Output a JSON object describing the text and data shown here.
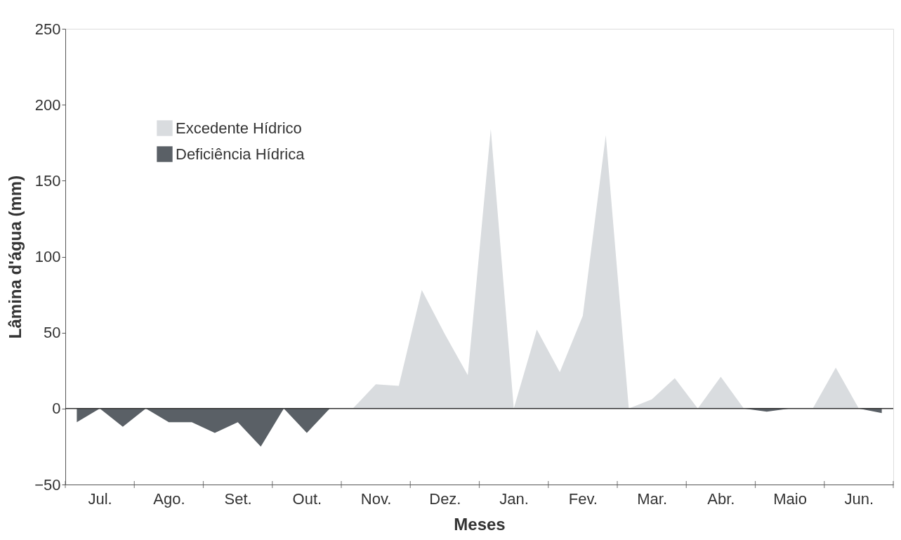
{
  "chart_data": {
    "type": "area",
    "xlabel": "Meses",
    "ylabel": "Lâmina d'água (mm)",
    "categories": [
      null,
      "Jul.",
      null,
      null,
      "Ago.",
      null,
      null,
      "Set.",
      null,
      null,
      "Out.",
      null,
      null,
      "Nov.",
      null,
      null,
      "Dez.",
      null,
      null,
      "Jan.",
      null,
      null,
      "Fev.",
      null,
      null,
      "Mar.",
      null,
      null,
      "Abr.",
      null,
      null,
      "Maio",
      null,
      null,
      "Jun.",
      null
    ],
    "series": [
      {
        "name": "Excedente Hídrico",
        "color": "#d9dcdf",
        "values": [
          0,
          0,
          0,
          0,
          0,
          0,
          0,
          0,
          0,
          0,
          0,
          0,
          0,
          16,
          15,
          78,
          49,
          22,
          184,
          0,
          52,
          24,
          61,
          180,
          0,
          6,
          20,
          0,
          21,
          0,
          0,
          0,
          0,
          27,
          0,
          0
        ]
      },
      {
        "name": "Deficiência Hídrica",
        "color": "#5a6066",
        "values": [
          -9,
          0,
          -12,
          0,
          -9,
          -9,
          -16,
          -9,
          -25,
          0,
          -16,
          0,
          0,
          0,
          0,
          0,
          0,
          0,
          0,
          0,
          0,
          0,
          0,
          0,
          0,
          0,
          0,
          0,
          0,
          0,
          -2,
          0,
          0,
          0,
          0,
          -3
        ]
      }
    ],
    "ylim": [
      -50,
      250
    ],
    "yticks": [
      -50,
      0,
      50,
      100,
      150,
      200,
      250
    ],
    "ref_lines": [
      {
        "axis": "y",
        "value": 0,
        "color": "#333333"
      }
    ],
    "grid": false,
    "legend": "top left"
  }
}
